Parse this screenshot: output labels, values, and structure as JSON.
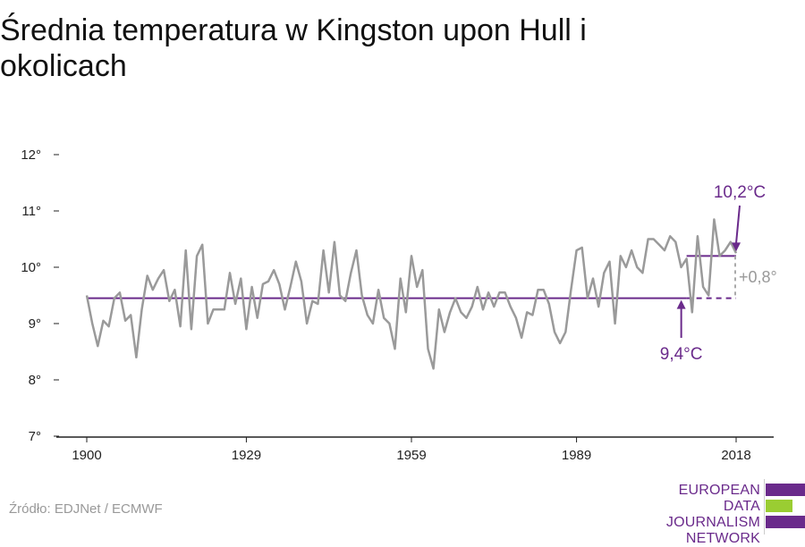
{
  "title": "Średnia temperatura w Kingston upon Hull i okolicach",
  "source": "Źródło: EDJNet / ECMWF",
  "logo": {
    "line1": "EUROPEAN",
    "line2": "DATA JOURNALISM",
    "line3": "NETWORK",
    "colors": [
      "#6a2a8b",
      "#9acd32",
      "#6a2a8b"
    ]
  },
  "colors": {
    "series": "#9a9a9a",
    "accent": "#6a2a8b",
    "axis": "#222222"
  },
  "chart_data": {
    "type": "line",
    "title": "Średnia temperatura w Kingston upon Hull i okolicach",
    "xlabel": "",
    "ylabel": "",
    "ylim": [
      7,
      12
    ],
    "xlim": [
      1900,
      2018
    ],
    "x_ticks": [
      1900,
      1929,
      1959,
      1989,
      2018
    ],
    "x_tick_labels": [
      "1900",
      "1929",
      "1959",
      "1989",
      "2018"
    ],
    "y_ticks": [
      7,
      8,
      9,
      10,
      11,
      12
    ],
    "y_tick_labels": [
      "7°",
      "8°",
      "9°",
      "10°",
      "11°",
      "12°"
    ],
    "grid": false,
    "series": [
      {
        "x_start": 1900,
        "values": [
          9.5,
          9.0,
          8.6,
          9.05,
          8.95,
          9.45,
          9.55,
          9.05,
          9.15,
          8.4,
          9.25,
          9.85,
          9.6,
          9.8,
          9.95,
          9.4,
          9.6,
          8.95,
          10.3,
          8.9,
          10.2,
          10.4,
          9.0,
          9.25,
          9.25,
          9.25,
          9.9,
          9.35,
          9.8,
          8.9,
          9.65,
          9.1,
          9.7,
          9.75,
          9.95,
          9.7,
          9.25,
          9.65,
          10.1,
          9.75,
          9.0,
          9.4,
          9.35,
          10.3,
          9.55,
          10.45,
          9.5,
          9.4,
          9.9,
          10.3,
          9.5,
          9.15,
          9.0,
          9.6,
          9.1,
          9.0,
          8.55,
          9.8,
          9.2,
          10.2,
          9.65,
          9.95,
          8.55,
          8.2,
          9.25,
          8.85,
          9.2,
          9.45,
          9.2,
          9.1,
          9.3,
          9.65,
          9.25,
          9.55,
          9.3,
          9.55,
          9.55,
          9.3,
          9.1,
          8.75,
          9.2,
          9.15,
          9.6,
          9.6,
          9.35,
          8.85,
          8.65,
          8.85,
          9.6,
          10.3,
          10.35,
          9.45,
          9.8,
          9.3,
          9.9,
          10.1,
          9.0,
          10.2,
          10.0,
          10.3,
          10.0,
          9.9,
          10.5,
          10.5,
          10.4,
          10.3,
          10.55,
          10.45,
          10.0,
          10.15,
          9.2,
          10.55,
          9.65,
          9.5,
          10.85,
          10.2,
          10.3,
          10.45,
          10.25
        ]
      }
    ],
    "reference_lines": [
      {
        "label": "9,4°C",
        "value": 9.45,
        "x_from": 1900,
        "x_to": 2018
      },
      {
        "label": "10,2°C",
        "value": 10.2,
        "x_from": 2009,
        "x_to": 2018
      }
    ],
    "difference_label": "+0,8°"
  }
}
